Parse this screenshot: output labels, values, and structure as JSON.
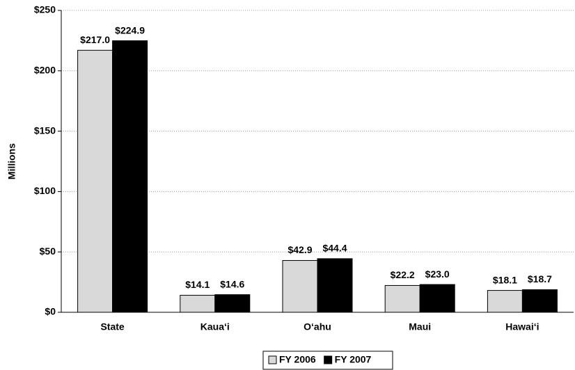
{
  "chart_data": {
    "type": "bar",
    "y_label": "Millions",
    "categories": [
      "State",
      "Kaua‘i",
      "O‘ahu",
      "Maui",
      "Hawai‘i"
    ],
    "series": [
      {
        "name": "FY 2006",
        "color": "#d9d9d9",
        "values": [
          217.0,
          14.1,
          42.9,
          22.2,
          18.1
        ],
        "value_labels": [
          "$217.0",
          "$14.1",
          "$42.9",
          "$22.2",
          "$18.1"
        ]
      },
      {
        "name": "FY 2007",
        "color": "#000000",
        "values": [
          224.9,
          14.6,
          44.4,
          23.0,
          18.7
        ],
        "value_labels": [
          "$224.9",
          "$14.6",
          "$44.4",
          "$23.0",
          "$18.7"
        ]
      }
    ],
    "ylim": [
      0,
      250
    ],
    "yticks": [
      {
        "value": 0,
        "label": "$0"
      },
      {
        "value": 50,
        "label": "$50"
      },
      {
        "value": 100,
        "label": "$100"
      },
      {
        "value": 150,
        "label": "$150"
      },
      {
        "value": 200,
        "label": "$200"
      },
      {
        "value": 250,
        "label": "$250"
      }
    ],
    "grid": true,
    "legend": "bottom"
  }
}
